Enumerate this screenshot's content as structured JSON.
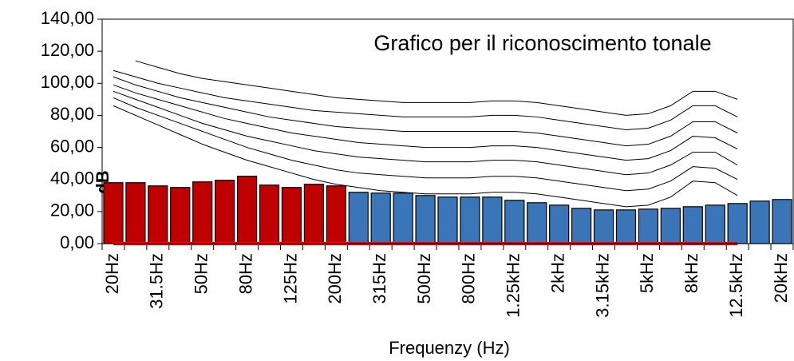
{
  "chart_data": {
    "type": "bar",
    "title": "Grafico per il riconoscimento tonale",
    "xlabel": "Frequenzy (Hz)",
    "ylabel": "dB",
    "categories": [
      "20Hz",
      null,
      "31.5Hz",
      null,
      "50Hz",
      null,
      "80Hz",
      null,
      "125Hz",
      null,
      "200Hz",
      null,
      "315Hz",
      null,
      "500Hz",
      null,
      "800Hz",
      null,
      "1.25kHz",
      null,
      "2kHz",
      null,
      "3.15kHz",
      null,
      "5kHz",
      null,
      "8kHz",
      null,
      "12.5kHz",
      null,
      "20kHz"
    ],
    "values": [
      38,
      38,
      36,
      35,
      38.5,
      39.5,
      42,
      36.5,
      35,
      37,
      36,
      32,
      31.5,
      31.5,
      30,
      29,
      29,
      29,
      27,
      25.5,
      24,
      22,
      21,
      21,
      21.5,
      22,
      23,
      24,
      25,
      26.5,
      27.5
    ],
    "colors": [
      "#c00000",
      "#c00000",
      "#c00000",
      "#c00000",
      "#c00000",
      "#c00000",
      "#c00000",
      "#c00000",
      "#c00000",
      "#c00000",
      "#c00000",
      "#3a75b8",
      "#3a75b8",
      "#3a75b8",
      "#3a75b8",
      "#3a75b8",
      "#3a75b8",
      "#3a75b8",
      "#3a75b8",
      "#3a75b8",
      "#3a75b8",
      "#3a75b8",
      "#3a75b8",
      "#3a75b8",
      "#3a75b8",
      "#3a75b8",
      "#3a75b8",
      "#3a75b8",
      "#3a75b8",
      "#3a75b8",
      "#3a75b8"
    ],
    "lines": [
      {
        "color": "#000000",
        "values": [
          null,
          114,
          110,
          106,
          103,
          101,
          99,
          97,
          95,
          93,
          91,
          90,
          89,
          88,
          88,
          88,
          88,
          89,
          89,
          88,
          86,
          84,
          82,
          80,
          81,
          86,
          95,
          95,
          90,
          null,
          null
        ]
      },
      {
        "color": "#000000",
        "values": [
          108,
          104,
          100,
          97,
          94,
          91,
          89,
          87,
          85,
          83,
          82,
          81,
          80,
          79,
          79,
          79,
          79,
          80,
          80,
          79,
          77,
          75,
          73,
          71,
          72,
          77,
          86,
          86,
          79,
          null,
          null
        ]
      },
      {
        "color": "#000000",
        "values": [
          104,
          99,
          95,
          91,
          88,
          85,
          82,
          79,
          77,
          75,
          73,
          72,
          71,
          70,
          70,
          70,
          70,
          70,
          70,
          69,
          67,
          65,
          63,
          61,
          62,
          67,
          76,
          76,
          69,
          null,
          null
        ]
      },
      {
        "color": "#000000",
        "values": [
          99,
          94,
          90,
          86,
          82,
          78,
          75,
          72,
          69,
          67,
          65,
          63,
          62,
          61,
          60,
          60,
          60,
          61,
          61,
          60,
          58,
          56,
          54,
          52,
          53,
          58,
          67,
          66,
          59,
          null,
          null
        ]
      },
      {
        "color": "#000000",
        "values": [
          95,
          90,
          85,
          80,
          75,
          71,
          67,
          64,
          61,
          58,
          56,
          54,
          53,
          52,
          51,
          51,
          51,
          52,
          52,
          51,
          49,
          47,
          45,
          43,
          44,
          49,
          57,
          57,
          49,
          null,
          null
        ]
      },
      {
        "color": "#000000",
        "values": [
          91,
          85,
          80,
          75,
          70,
          65,
          60,
          56,
          52,
          49,
          46,
          44,
          43,
          42,
          41,
          41,
          41,
          42,
          42,
          41,
          39,
          37,
          35,
          33,
          34,
          39,
          48,
          47,
          40,
          null,
          null
        ]
      },
      {
        "color": "#000000",
        "values": [
          86,
          80,
          74,
          68,
          62,
          57,
          52,
          48,
          44,
          40,
          37,
          35,
          33,
          32,
          31,
          31,
          31,
          32,
          32,
          31,
          29,
          27,
          25,
          23,
          24,
          29,
          39,
          38,
          30,
          null,
          null
        ]
      },
      {
        "color": "#ff0000",
        "width": 4,
        "values": [
          0,
          0,
          0,
          0,
          0,
          0,
          0,
          0,
          0,
          0,
          0,
          0,
          0,
          0,
          0,
          0,
          0,
          0,
          0,
          0,
          0,
          0,
          0,
          0,
          0,
          0,
          0,
          0,
          0,
          null,
          null
        ]
      }
    ],
    "ylim": [
      0,
      140
    ],
    "yticks": [
      {
        "value": 0,
        "label": "0,00"
      },
      {
        "value": 20,
        "label": "20,00"
      },
      {
        "value": 40,
        "label": "40,00"
      },
      {
        "value": 60,
        "label": "60,00"
      },
      {
        "value": 80,
        "label": "80,00"
      },
      {
        "value": 100,
        "label": "100,00"
      },
      {
        "value": 120,
        "label": "120,00"
      },
      {
        "value": 140,
        "label": "140,00"
      }
    ]
  }
}
